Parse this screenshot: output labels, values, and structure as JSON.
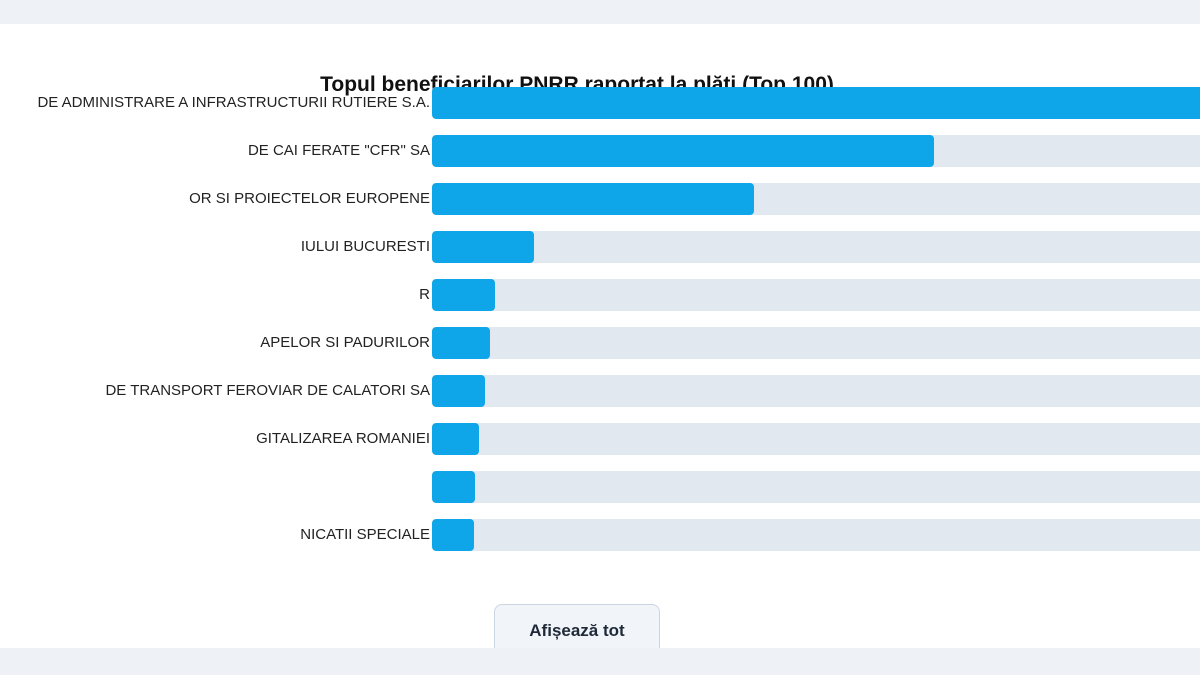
{
  "chart_data": {
    "type": "bar",
    "orientation": "horizontal",
    "title": "Topul beneficiarilor PNRR raportat la plăți (Top 100)",
    "categories": [
      "DE ADMINISTRARE A INFRASTRUCTURII RUTIERE S.A.",
      "DE CAI FERATE \"CFR\" SA",
      "OR SI PROIECTELOR EUROPENE",
      "IULUI BUCURESTI",
      "R",
      "APELOR SI PADURILOR",
      "DE TRANSPORT FEROVIAR DE CALATORI SA",
      "GITALIZAREA ROMANIEI",
      "",
      "NICATII SPECIALE"
    ],
    "values": [
      100,
      63.5,
      40.8,
      12.9,
      8,
      7.3,
      6.7,
      5.9,
      5.5,
      5.3
    ],
    "xlim": [
      0,
      100
    ],
    "grid": false,
    "legend": "none",
    "bar_color": "#0ea5e9",
    "track_color": "#e2e8f0"
  },
  "actions": {
    "show_all_label": "Afișează tot"
  }
}
